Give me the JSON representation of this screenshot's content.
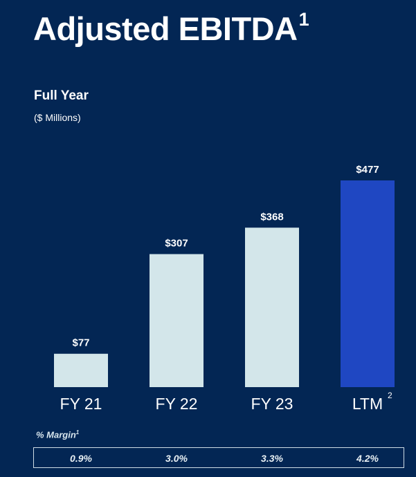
{
  "header": {
    "title": "Adjusted EBITDA",
    "title_sup": "1",
    "subtitle": "Full Year",
    "units": "($ Millions)"
  },
  "chart_data": {
    "type": "bar",
    "categories": [
      "FY 21",
      "FY 22",
      "FY 23",
      "LTM"
    ],
    "category_sups": [
      "",
      "",
      "",
      "2"
    ],
    "values": [
      77,
      307,
      368,
      477
    ],
    "value_labels": [
      "$77",
      "$307",
      "$368",
      "$477"
    ],
    "ylim": [
      0,
      477
    ],
    "title": "Full Year",
    "ylabel": "($ Millions)",
    "grid": false,
    "colors": [
      "#d3e6ea",
      "#d3e6ea",
      "#d3e6ea",
      "#1f47c2"
    ]
  },
  "margin": {
    "label": "% Margin",
    "label_sup": "1",
    "values": [
      "0.9%",
      "3.0%",
      "3.3%",
      "4.2%"
    ]
  }
}
